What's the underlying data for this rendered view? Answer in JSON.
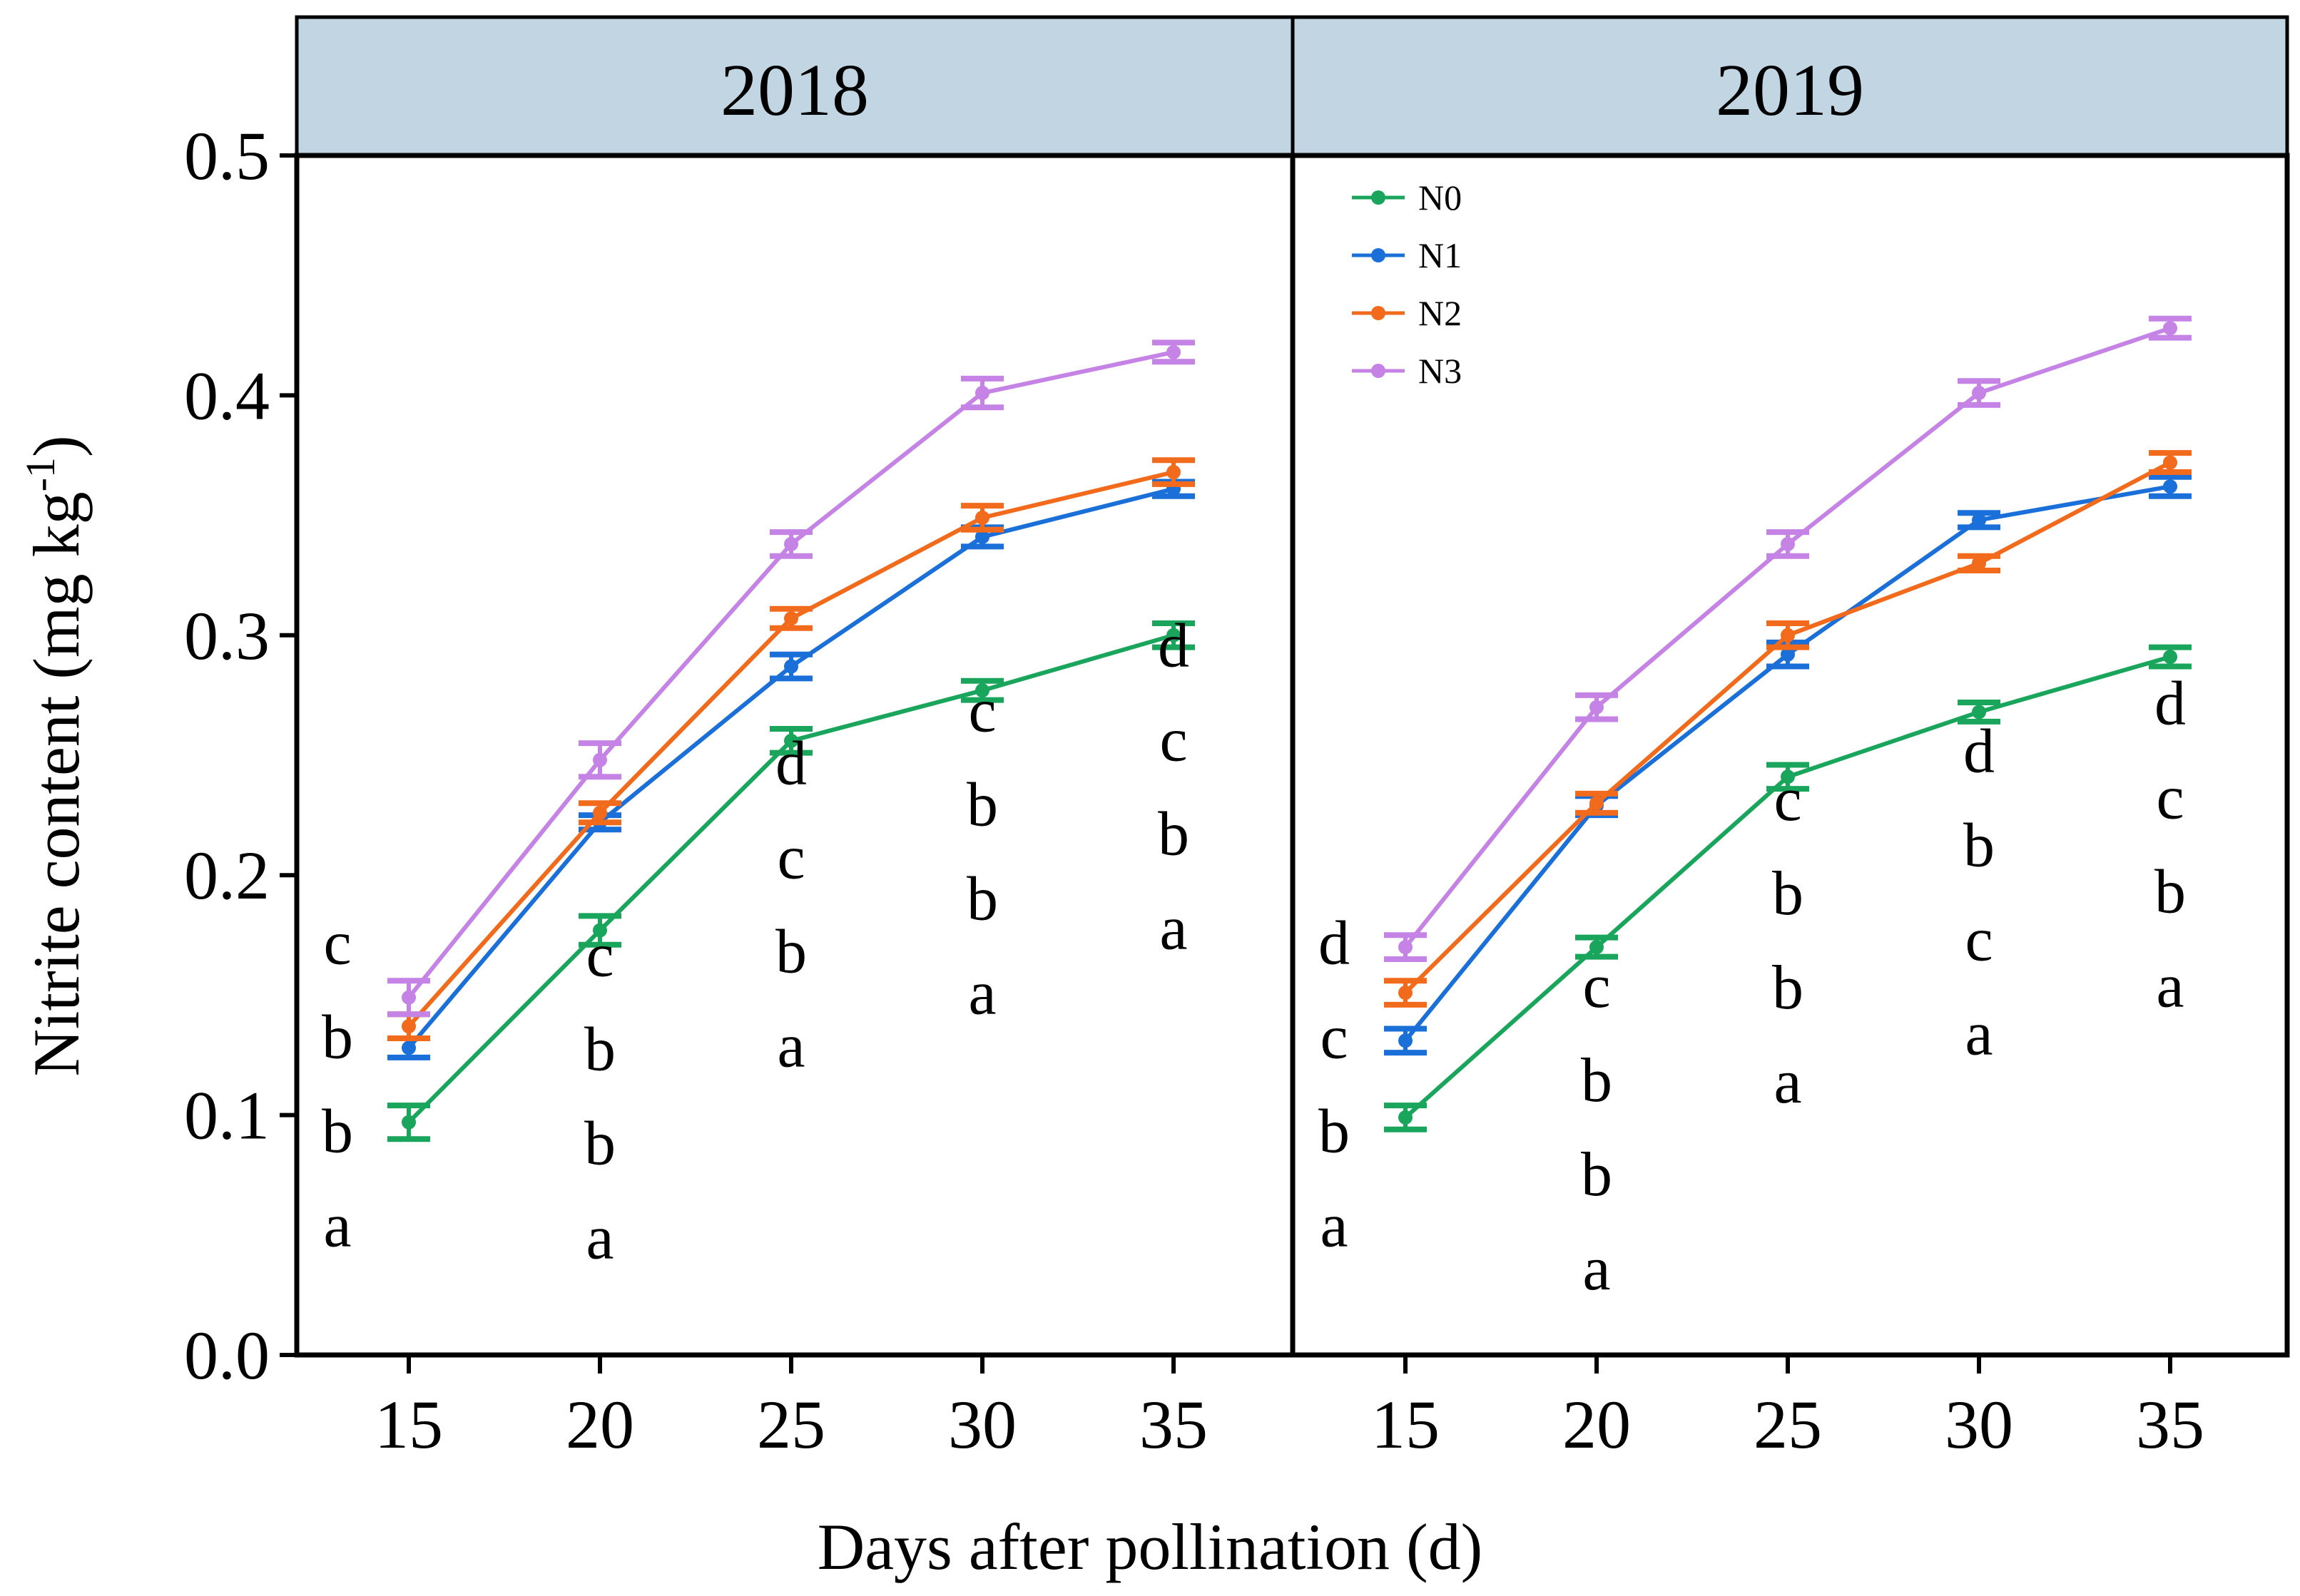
{
  "chart_data": [
    {
      "type": "line",
      "title": "2018",
      "xlabel": "Days after pollination (d)",
      "ylabel": "Nitrite content (mg kg",
      "ylabel_sup": "-1",
      "ylabel_close": ")",
      "x": [
        15,
        20,
        25,
        30,
        35
      ],
      "xticks": [
        "15",
        "20",
        "25",
        "30",
        "35"
      ],
      "ylim": [
        0,
        0.5
      ],
      "yticks": [
        "0.0",
        "0.1",
        "0.2",
        "0.3",
        "0.4",
        "0.5"
      ],
      "series": [
        {
          "name": "N0",
          "color": "#1aa55d",
          "values": [
            0.097,
            0.177,
            0.256,
            0.277,
            0.3
          ],
          "errors": [
            0.007,
            0.006,
            0.005,
            0.004,
            0.005
          ]
        },
        {
          "name": "N1",
          "color": "#1a6fd8",
          "values": [
            0.128,
            0.222,
            0.287,
            0.341,
            0.361
          ],
          "errors": [
            0.004,
            0.003,
            0.005,
            0.004,
            0.003
          ]
        },
        {
          "name": "N2",
          "color": "#f26a1b",
          "values": [
            0.137,
            0.226,
            0.307,
            0.349,
            0.368
          ],
          "errors": [
            0.005,
            0.004,
            0.004,
            0.005,
            0.005
          ]
        },
        {
          "name": "N3",
          "color": "#c583e6",
          "values": [
            0.149,
            0.248,
            0.338,
            0.401,
            0.418
          ],
          "errors": [
            0.007,
            0.007,
            0.005,
            0.006,
            0.004
          ]
        }
      ],
      "letters": [
        [
          "c",
          "b",
          "b",
          "a"
        ],
        [
          "c",
          "b",
          "b",
          "a"
        ],
        [
          "d",
          "c",
          "b",
          "a"
        ],
        [
          "c",
          "b",
          "b",
          "a"
        ],
        [
          "d",
          "c",
          "b",
          "a"
        ]
      ],
      "letter_tops": [
        0.163,
        0.158,
        0.238,
        0.26,
        0.287
      ]
    },
    {
      "type": "line",
      "title": "2019",
      "x": [
        15,
        20,
        25,
        30,
        35
      ],
      "xticks": [
        "15",
        "20",
        "25",
        "30",
        "35"
      ],
      "ylim": [
        0,
        0.5
      ],
      "series": [
        {
          "name": "N0",
          "color": "#1aa55d",
          "values": [
            0.099,
            0.17,
            0.241,
            0.268,
            0.291
          ],
          "errors": [
            0.005,
            0.004,
            0.005,
            0.004,
            0.004
          ]
        },
        {
          "name": "N1",
          "color": "#1a6fd8",
          "values": [
            0.131,
            0.229,
            0.292,
            0.348,
            0.362
          ],
          "errors": [
            0.005,
            0.004,
            0.005,
            0.003,
            0.004
          ]
        },
        {
          "name": "N2",
          "color": "#f26a1b",
          "values": [
            0.151,
            0.23,
            0.3,
            0.33,
            0.372
          ],
          "errors": [
            0.005,
            0.004,
            0.005,
            0.003,
            0.004
          ]
        },
        {
          "name": "N3",
          "color": "#c583e6",
          "values": [
            0.17,
            0.27,
            0.338,
            0.401,
            0.428
          ],
          "errors": [
            0.005,
            0.005,
            0.005,
            0.005,
            0.004
          ]
        }
      ],
      "letters": [
        [
          "d",
          "c",
          "b",
          "a"
        ],
        [
          "c",
          "b",
          "b",
          "a"
        ],
        [
          "c",
          "b",
          "b",
          "a"
        ],
        [
          "d",
          "b",
          "c",
          "a"
        ],
        [
          "d",
          "c",
          "b",
          "a"
        ]
      ],
      "letter_tops": [
        0.163,
        0.145,
        0.223,
        0.243,
        0.263
      ]
    }
  ],
  "legend": {
    "position": "top-left of right panel",
    "entries": [
      "N0",
      "N1",
      "N2",
      "N3"
    ]
  }
}
